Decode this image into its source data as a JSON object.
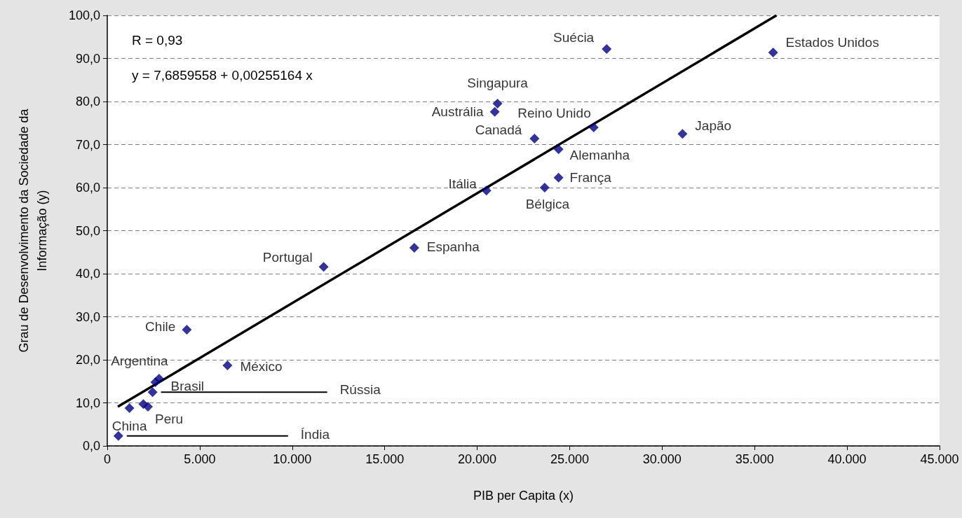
{
  "chart_data": {
    "type": "scatter",
    "xlabel": "PIB per Capita (x)",
    "ylabel": "Grau de Desenvolvimento da Sociedade da\nInformação (y)",
    "annotations": [
      "R = 0,93",
      "y = 7,6859558 + 0,00255164 x"
    ],
    "xlim": [
      0,
      45000
    ],
    "xticks": [
      0,
      {
        "value": 5000,
        "label": "5.000"
      },
      {
        "value": 10000,
        "label": "10.000"
      },
      {
        "value": 15000,
        "label": "15.000"
      },
      {
        "value": 20000,
        "label": "20.000"
      },
      {
        "value": 25000,
        "label": "25.000"
      },
      {
        "value": 30000,
        "label": "30.000"
      },
      {
        "value": 35000,
        "label": "35.000"
      },
      {
        "value": 40000,
        "label": "40.000"
      },
      {
        "value": 45000,
        "label": "45.000"
      }
    ],
    "ylim": [
      0,
      100
    ],
    "yticks": [
      {
        "value": 0,
        "label": "0,0"
      },
      {
        "value": 10,
        "label": "10,0"
      },
      {
        "value": 20,
        "label": "20,0"
      },
      {
        "value": 30,
        "label": "30,0"
      },
      {
        "value": 40,
        "label": "40,0"
      },
      {
        "value": 50,
        "label": "50,0"
      },
      {
        "value": 60,
        "label": "60,0"
      },
      {
        "value": 70,
        "label": "70,0"
      },
      {
        "value": 80,
        "label": "80,0"
      },
      {
        "value": 90,
        "label": "90,0"
      },
      {
        "value": 100,
        "label": "100,0"
      }
    ],
    "grid": "y",
    "marker": "diamond",
    "series": [
      {
        "color": "#000080",
        "x": [
          27000,
          36000,
          21100,
          20950,
          26300,
          31100,
          23100,
          24400,
          24400,
          23650,
          20500,
          16600,
          11700,
          4300,
          6500,
          2800,
          2600,
          2450,
          1200,
          2200,
          1950,
          600
        ],
        "values": [
          92.2,
          91.4,
          79.5,
          77.6,
          74.0,
          72.5,
          71.4,
          68.9,
          62.3,
          60.0,
          59.3,
          46.0,
          41.6,
          27.0,
          18.7,
          15.6,
          14.8,
          12.5,
          8.8,
          9.1,
          9.7,
          2.3
        ],
        "value_labels": [
          "Suécia",
          "Estados Unidos",
          "Singapura",
          "Austrália",
          "Reino Unido",
          "Japão",
          "Canadá",
          "Alemanha",
          "França",
          "Bélgica",
          "Itália",
          "Espanha",
          "Portugal",
          "Chile",
          "México",
          "Argentina",
          "Brasil",
          "Rússia",
          "China",
          "Peru",
          null,
          "Índia"
        ]
      },
      {
        "type": "line",
        "color": "#000000",
        "marker": "none",
        "line_style": "solid",
        "x": [
          570,
          36180
        ],
        "values": [
          9.1,
          100.0
        ]
      }
    ]
  }
}
